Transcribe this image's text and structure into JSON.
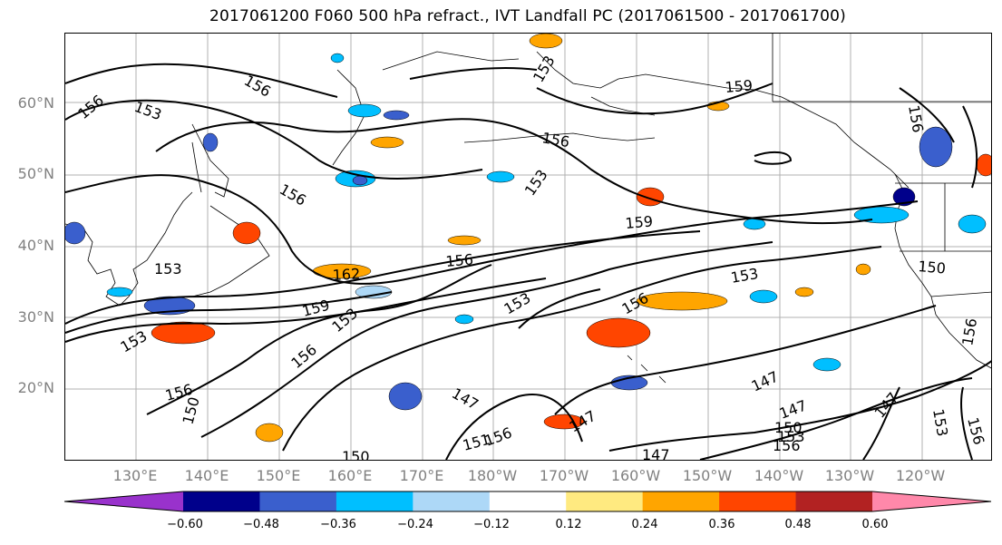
{
  "title": "2017061200 F060 500 hPa refract., IVT Landfall PC (2017061500 - 2017061700)",
  "lat_labels": [
    "60°N",
    "50°N",
    "40°N",
    "30°N",
    "20°N"
  ],
  "lon_labels": [
    "130°E",
    "140°E",
    "150°E",
    "160°E",
    "170°E",
    "180°W",
    "170°W",
    "160°W",
    "150°W",
    "140°W",
    "130°W",
    "120°W"
  ],
  "contour_labels": [
    "156",
    "153",
    "156",
    "153",
    "156",
    "153",
    "159",
    "156",
    "156",
    "153",
    "159",
    "156",
    "153",
    "162",
    "153",
    "159",
    "153",
    "153",
    "156",
    "150",
    "156",
    "156",
    "147",
    "147",
    "151",
    "156",
    "150",
    "147",
    "147",
    "147",
    "150",
    "150",
    "156",
    "153",
    "156",
    "156",
    "153",
    "147"
  ],
  "colorbar": {
    "colors": [
      "#9932cc",
      "#00008b",
      "#3a5fcd",
      "#00bfff",
      "#add8f7",
      "#ffffff",
      "#ffea80",
      "#ffa500",
      "#ff4500",
      "#b22222",
      "#ff88aa"
    ],
    "ticks": [
      "−0.60",
      "−0.48",
      "−0.36",
      "−0.24",
      "−0.12",
      "0.12",
      "0.24",
      "0.36",
      "0.48",
      "0.60"
    ]
  }
}
